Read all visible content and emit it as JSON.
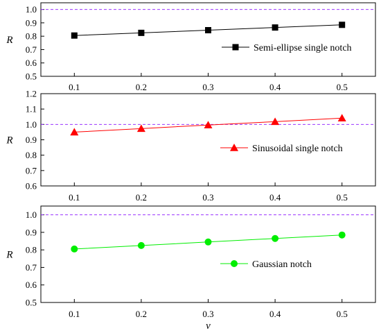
{
  "chart_data": [
    {
      "type": "line",
      "ylabel": "R",
      "xlabel": "",
      "x": [
        0.1,
        0.2,
        0.3,
        0.4,
        0.5
      ],
      "xticks": [
        "0.1",
        "0.2",
        "0.3",
        "0.4",
        "0.5"
      ],
      "xlim": [
        0.05,
        0.55
      ],
      "ylim": [
        0.5,
        1.05
      ],
      "yticks": [
        "0.5",
        "0.6",
        "0.7",
        "0.8",
        "0.9",
        "1.0"
      ],
      "reference_line": 1.0,
      "reference_color": "#9933ff",
      "legend_position": "right-middle",
      "series": [
        {
          "name": "Semi-ellipse single notch",
          "marker": "square",
          "color": "#000000",
          "values": [
            0.805,
            0.825,
            0.845,
            0.865,
            0.885
          ]
        }
      ]
    },
    {
      "type": "line",
      "ylabel": "R",
      "xlabel": "",
      "x": [
        0.1,
        0.2,
        0.3,
        0.4,
        0.5
      ],
      "xticks": [
        "0.1",
        "0.2",
        "0.3",
        "0.4",
        "0.5"
      ],
      "xlim": [
        0.05,
        0.55
      ],
      "ylim": [
        0.6,
        1.2
      ],
      "yticks": [
        "0.6",
        "0.7",
        "0.8",
        "0.9",
        "1.0",
        "1.1",
        "1.2"
      ],
      "reference_line": 1.0,
      "reference_color": "#9933ff",
      "legend_position": "right-middle",
      "series": [
        {
          "name": "Sinusoidal single notch",
          "marker": "triangle",
          "color": "#ff0000",
          "values": [
            0.95,
            0.973,
            0.996,
            1.018,
            1.041
          ]
        }
      ]
    },
    {
      "type": "line",
      "ylabel": "R",
      "xlabel": "v",
      "x": [
        0.1,
        0.2,
        0.3,
        0.4,
        0.5
      ],
      "xticks": [
        "0.1",
        "0.2",
        "0.3",
        "0.4",
        "0.5"
      ],
      "xlim": [
        0.05,
        0.55
      ],
      "ylim": [
        0.5,
        1.05
      ],
      "yticks": [
        "0.5",
        "0.6",
        "0.7",
        "0.8",
        "0.9",
        "1.0"
      ],
      "reference_line": 1.0,
      "reference_color": "#9933ff",
      "legend_position": "center",
      "series": [
        {
          "name": "Gaussian notch",
          "marker": "circle",
          "color": "#00ee00",
          "values": [
            0.805,
            0.825,
            0.845,
            0.865,
            0.885
          ]
        }
      ]
    }
  ]
}
